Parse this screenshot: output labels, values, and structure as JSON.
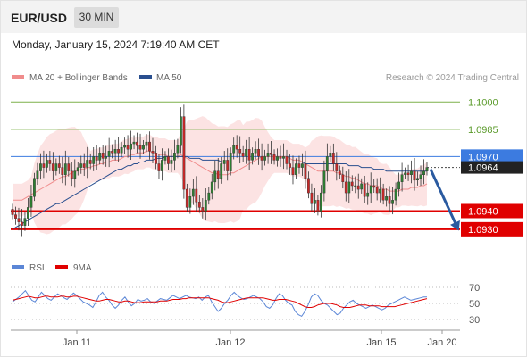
{
  "header": {
    "symbol": "EUR/USD",
    "timeframe": "30 MIN",
    "datetime": "Monday, January 15, 2024 7:19:40 AM CET"
  },
  "legend": {
    "ma20_label": "MA 20 + Bollinger Bands",
    "ma50_label": "MA 50",
    "ma20_color": "#f08c8c",
    "ma50_color": "#2a4f8f",
    "credit": "Research © 2024 Trading Central"
  },
  "chart_data": [
    {
      "type": "candlestick",
      "price_range": [
        1.0926,
        1.1007
      ],
      "grid": false,
      "levels": [
        {
          "value": 1.1,
          "label": "1.1000",
          "kind": "resistance",
          "color": "#7db04a"
        },
        {
          "value": 1.0985,
          "label": "1.0985",
          "kind": "resistance",
          "color": "#7db04a"
        },
        {
          "value": 1.097,
          "label": "1.0970",
          "kind": "pivot",
          "color": "#3c7be0"
        },
        {
          "value": 1.094,
          "label": "1.0940",
          "kind": "support",
          "color": "#e00000"
        },
        {
          "value": 1.093,
          "label": "1.0930",
          "kind": "support",
          "color": "#e00000"
        }
      ],
      "last_price": {
        "value": 1.0964,
        "label": "1.0964"
      },
      "forecast_arrow": {
        "from": 1.0964,
        "to": 1.093,
        "color": "#2a5aa0"
      },
      "x_tick_labels": [
        "Jan 11",
        "Jan 12",
        "Jan 15",
        "Jan 20"
      ],
      "close": [
        1.0938,
        1.0936,
        1.0934,
        1.0932,
        1.0936,
        1.0942,
        1.0948,
        1.0958,
        1.0962,
        1.0966,
        1.0964,
        1.0968,
        1.0966,
        1.0962,
        1.0966,
        1.0964,
        1.096,
        1.0966,
        1.0962,
        1.0958,
        1.0962,
        1.0964,
        1.0966,
        1.0964,
        1.0968,
        1.0966,
        1.097,
        1.0968,
        1.0972,
        1.0969,
        1.097,
        1.0973,
        1.0972,
        1.0974,
        1.0972,
        1.0975,
        1.0976,
        1.0974,
        1.0977,
        1.0978,
        1.0976,
        1.0974,
        1.0976,
        1.0978,
        1.0973,
        1.0972,
        1.0966,
        1.0962,
        1.0968,
        1.097,
        1.0966,
        1.0968,
        1.0972,
        1.0976,
        1.0992,
        1.0952,
        1.0942,
        1.0948,
        1.0952,
        1.0945,
        1.0942,
        1.094,
        1.0946,
        1.095,
        1.0956,
        1.0962,
        1.0958,
        1.0966,
        1.0968,
        1.0962,
        1.0972,
        1.0976,
        1.0974,
        1.0972,
        1.097,
        1.0974,
        1.0968,
        1.0972,
        1.0974,
        1.097,
        1.0968,
        1.097,
        1.0972,
        1.0971,
        1.0968,
        1.097,
        1.0969,
        1.097,
        1.0966,
        1.0964,
        1.096,
        1.0966,
        1.0964,
        1.0966,
        1.0958,
        1.095,
        1.0944,
        1.0946,
        1.094,
        1.095,
        1.0962,
        1.097,
        1.0972,
        1.0966,
        1.0962,
        1.096,
        1.0956,
        1.095,
        1.0956,
        1.0954,
        1.0954,
        1.0952,
        1.0955,
        1.0948,
        1.095,
        1.0954,
        1.0953,
        1.095,
        1.0952,
        1.0946,
        1.0948,
        1.0944,
        1.0946,
        1.0952,
        1.0956,
        1.096,
        1.0961,
        1.096,
        1.0962,
        1.0957,
        1.0958,
        1.096,
        1.0962,
        1.0964
      ],
      "ma20": [
        1.0946,
        1.0946,
        1.0946,
        1.0946,
        1.0947,
        1.0948,
        1.0949,
        1.095,
        1.0951,
        1.0952,
        1.0953,
        1.0954,
        1.0955,
        1.0956,
        1.0957,
        1.0958,
        1.0959,
        1.0959,
        1.096,
        1.0961,
        1.0962,
        1.0962,
        1.0963,
        1.0963,
        1.0964,
        1.0964,
        1.0965,
        1.0965,
        1.0966,
        1.0966,
        1.0967,
        1.0967,
        1.0968,
        1.0968,
        1.0968,
        1.0969,
        1.097,
        1.097,
        1.0971,
        1.0971,
        1.0972,
        1.0972,
        1.0972,
        1.0973,
        1.0973,
        1.0972,
        1.0972,
        1.0971,
        1.0971,
        1.0971,
        1.097,
        1.097,
        1.097,
        1.097,
        1.0971,
        1.097,
        1.0969,
        1.0968,
        1.0967,
        1.0966,
        1.0965,
        1.0964,
        1.0963,
        1.0962,
        1.0961,
        1.0961,
        1.096,
        1.096,
        1.096,
        1.096,
        1.0961,
        1.0961,
        1.0962,
        1.0963,
        1.0964,
        1.0965,
        1.0966,
        1.0967,
        1.0968,
        1.0969,
        1.097,
        1.097,
        1.097,
        1.097,
        1.097,
        1.097,
        1.097,
        1.097,
        1.097,
        1.0969,
        1.0968,
        1.0968,
        1.0968,
        1.0967,
        1.0966,
        1.0965,
        1.0964,
        1.0963,
        1.0962,
        1.0962,
        1.0962,
        1.0962,
        1.0962,
        1.0962,
        1.0961,
        1.0961,
        1.096,
        1.0959,
        1.0959,
        1.0958,
        1.0958,
        1.0957,
        1.0956,
        1.0955,
        1.0955,
        1.0954,
        1.0954,
        1.0954,
        1.0953,
        1.0952,
        1.0952,
        1.0951,
        1.0951,
        1.0951,
        1.0951,
        1.0952,
        1.0952,
        1.0952,
        1.0953,
        1.0953,
        1.0953,
        1.0954,
        1.0954,
        1.0955
      ],
      "ma50": [
        1.093,
        1.0931,
        1.0932,
        1.0933,
        1.0934,
        1.0935,
        1.0936,
        1.0937,
        1.0938,
        1.0939,
        1.094,
        1.0941,
        1.0942,
        1.0943,
        1.0944,
        1.0944,
        1.0945,
        1.0946,
        1.0947,
        1.0948,
        1.0949,
        1.095,
        1.0951,
        1.0952,
        1.0953,
        1.0954,
        1.0955,
        1.0956,
        1.0957,
        1.0958,
        1.0959,
        1.096,
        1.0961,
        1.0962,
        1.0963,
        1.0963,
        1.0964,
        1.0965,
        1.0965,
        1.0966,
        1.0966,
        1.0967,
        1.0967,
        1.0968,
        1.0968,
        1.0968,
        1.0969,
        1.0969,
        1.0969,
        1.097,
        1.097,
        1.097,
        1.097,
        1.097,
        1.097,
        1.097,
        1.097,
        1.0969,
        1.0969,
        1.0969,
        1.0969,
        1.0968,
        1.0968,
        1.0968,
        1.0968,
        1.0968,
        1.0968,
        1.0967,
        1.0967,
        1.0967,
        1.0967,
        1.0967,
        1.0967,
        1.0967,
        1.0967,
        1.0967,
        1.0967,
        1.0967,
        1.0967,
        1.0967,
        1.0967,
        1.0967,
        1.0967,
        1.0967,
        1.0967,
        1.0967,
        1.0967,
        1.0967,
        1.0967,
        1.0967,
        1.0967,
        1.0967,
        1.0967,
        1.0967,
        1.0966,
        1.0966,
        1.0966,
        1.0966,
        1.0966,
        1.0966,
        1.0966,
        1.0966,
        1.0966,
        1.0966,
        1.0966,
        1.0966,
        1.0966,
        1.0966,
        1.0965,
        1.0965,
        1.0965,
        1.0965,
        1.0964,
        1.0964,
        1.0964,
        1.0964,
        1.0963,
        1.0963,
        1.0963,
        1.0963,
        1.0962,
        1.0962,
        1.0962,
        1.0962,
        1.0962,
        1.0962,
        1.0962,
        1.0962,
        1.0962,
        1.0962,
        1.0962,
        1.0962,
        1.0962,
        1.0962
      ]
    },
    {
      "type": "line",
      "indicator": "RSI",
      "ylim": [
        20,
        80
      ],
      "y_ticks": [
        70,
        50,
        30
      ],
      "series": [
        {
          "name": "RSI",
          "color": "#5b86d6",
          "values": [
            52,
            55,
            58,
            62,
            66,
            60,
            54,
            52,
            58,
            64,
            60,
            56,
            54,
            58,
            62,
            60,
            57,
            55,
            59,
            63,
            60,
            56,
            52,
            50,
            48,
            45,
            52,
            60,
            64,
            58,
            54,
            48,
            44,
            48,
            54,
            58,
            52,
            47,
            50,
            55,
            53,
            54,
            56,
            52,
            50,
            53,
            56,
            55,
            54,
            57,
            60,
            58,
            56,
            58,
            60,
            58,
            57,
            56,
            58,
            54,
            58,
            60,
            52,
            46,
            40,
            44,
            50,
            54,
            60,
            64,
            60,
            57,
            55,
            56,
            58,
            60,
            58,
            56,
            52,
            46,
            44,
            48,
            56,
            62,
            60,
            54,
            50,
            48,
            40,
            36,
            34,
            40,
            48,
            58,
            62,
            60,
            54,
            50,
            48,
            44,
            40,
            36,
            38,
            44,
            48,
            52,
            54,
            50,
            48,
            46,
            44,
            46,
            48,
            46,
            44,
            42,
            44,
            48,
            50,
            52,
            54,
            56,
            58,
            56,
            54,
            55,
            56,
            57,
            58,
            58
          ]
        },
        {
          "name": "9MA",
          "color": "#e00000",
          "values": [
            54,
            55,
            56,
            57,
            58,
            59,
            58,
            57,
            57,
            58,
            59,
            59,
            58,
            58,
            58,
            59,
            59,
            58,
            58,
            59,
            59,
            58,
            57,
            56,
            55,
            54,
            53,
            53,
            54,
            55,
            55,
            54,
            53,
            52,
            52,
            53,
            53,
            52,
            51,
            51,
            51,
            52,
            52,
            52,
            52,
            52,
            53,
            53,
            53,
            54,
            55,
            55,
            55,
            56,
            56,
            57,
            57,
            57,
            57,
            57,
            57,
            57,
            56,
            55,
            54,
            52,
            51,
            51,
            52,
            53,
            54,
            55,
            56,
            57,
            57,
            57,
            57,
            57,
            57,
            56,
            55,
            54,
            54,
            55,
            55,
            55,
            54,
            53,
            52,
            50,
            48,
            46,
            45,
            45,
            46,
            48,
            49,
            50,
            50,
            50,
            49,
            48,
            46,
            45,
            45,
            45,
            46,
            47,
            48,
            48,
            48,
            47,
            47,
            47,
            47,
            46,
            46,
            46,
            46,
            46,
            47,
            48,
            49,
            50,
            51,
            52,
            53,
            54,
            55,
            56
          ]
        }
      ]
    }
  ]
}
